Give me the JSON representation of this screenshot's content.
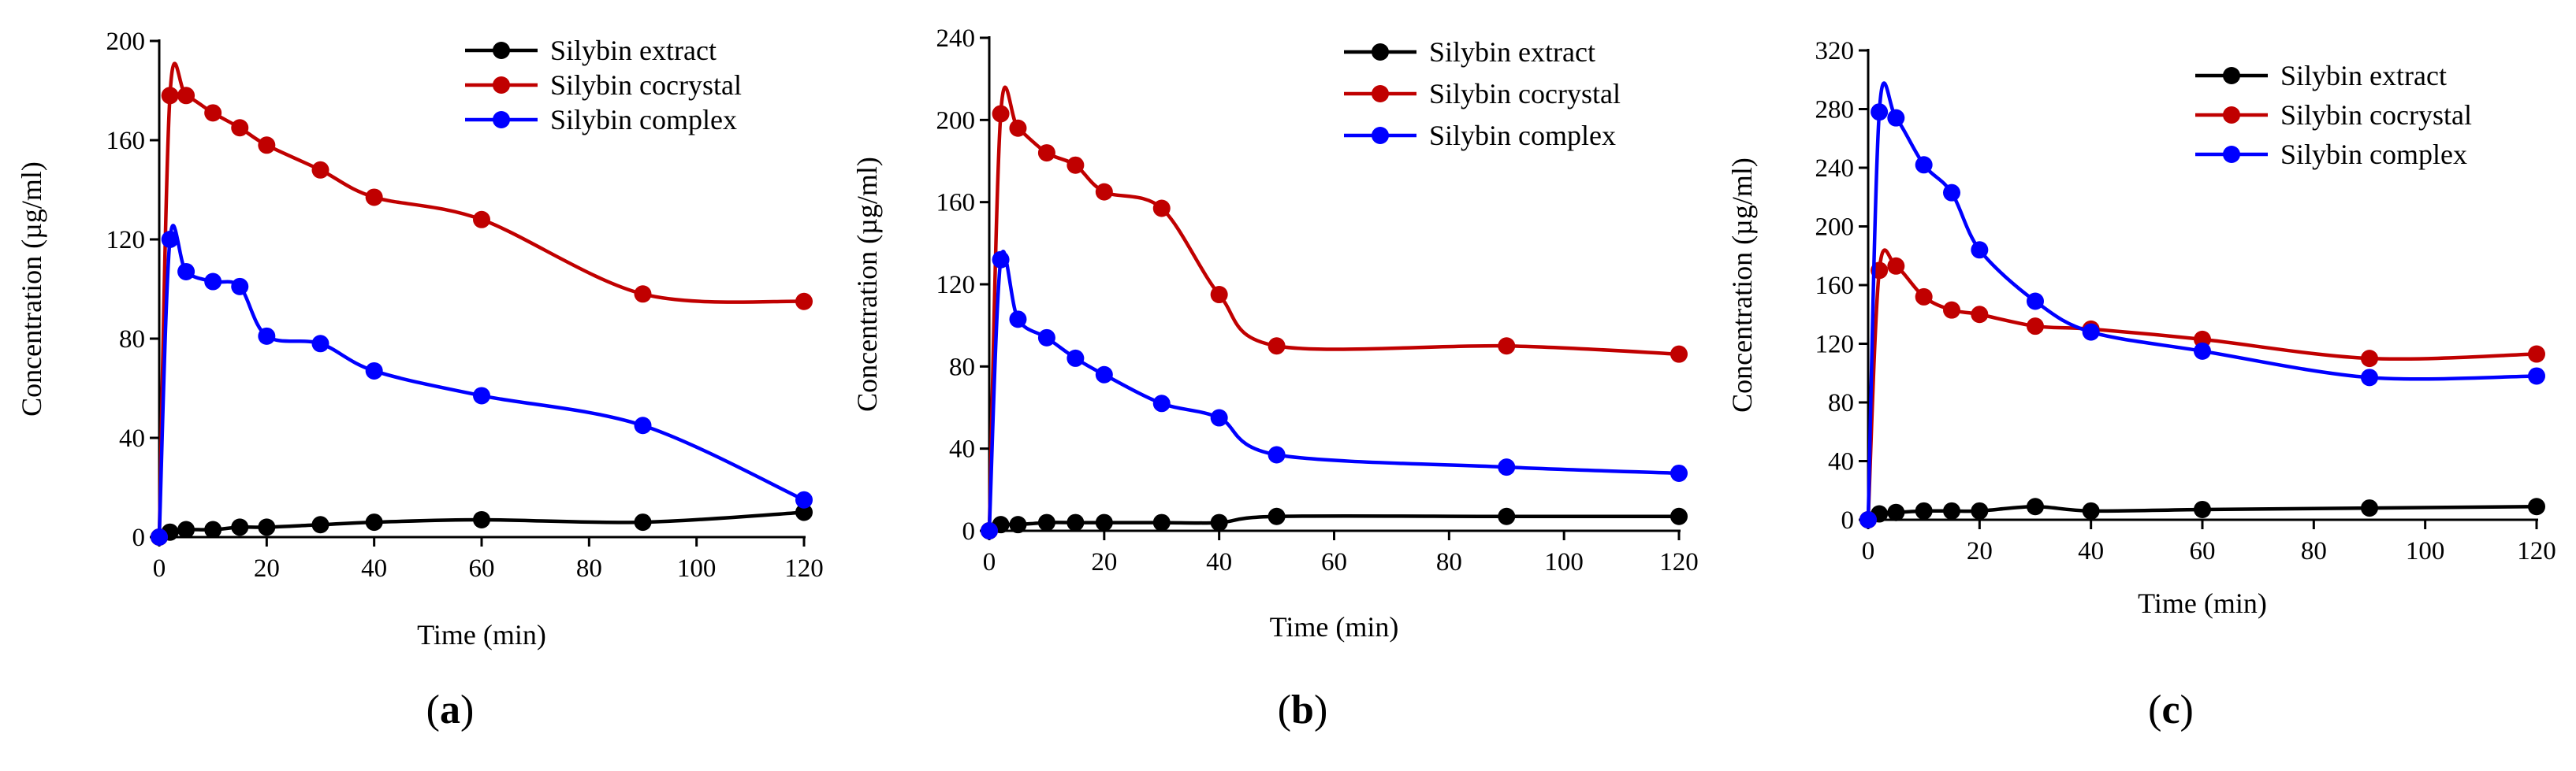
{
  "chart_data": [
    {
      "type": "line",
      "panel_label": "a",
      "xlabel": "Time (min)",
      "ylabel": "Concentration (µg/ml)",
      "xlim": [
        0,
        120
      ],
      "ylim": [
        0,
        200
      ],
      "xticks": [
        0,
        20,
        40,
        60,
        80,
        100,
        120
      ],
      "yticks": [
        0,
        40,
        80,
        120,
        160,
        200
      ],
      "legend_position": "top-right",
      "series": [
        {
          "name": "Silybin extract",
          "color": "#000000",
          "x": [
            0,
            2,
            5,
            10,
            15,
            20,
            30,
            40,
            60,
            90,
            120
          ],
          "y": [
            0,
            2,
            3,
            3,
            4,
            4,
            5,
            6,
            7,
            6,
            10
          ]
        },
        {
          "name": "Silybin cocrystal",
          "color": "#c00000",
          "x": [
            0,
            2,
            5,
            10,
            15,
            20,
            30,
            40,
            60,
            90,
            120
          ],
          "y": [
            0,
            178,
            178,
            171,
            165,
            158,
            148,
            137,
            128,
            98,
            95
          ]
        },
        {
          "name": "Silybin complex",
          "color": "#0000ff",
          "x": [
            0,
            2,
            5,
            10,
            15,
            20,
            30,
            40,
            60,
            90,
            120
          ],
          "y": [
            0,
            120,
            107,
            103,
            101,
            81,
            78,
            67,
            57,
            45,
            15
          ]
        }
      ]
    },
    {
      "type": "line",
      "panel_label": "b",
      "xlabel": "Time (min)",
      "ylabel": "Concentration (µg/ml)",
      "xlim": [
        0,
        120
      ],
      "ylim": [
        0,
        240
      ],
      "xticks": [
        0,
        20,
        40,
        60,
        80,
        100,
        120
      ],
      "yticks": [
        0,
        40,
        80,
        120,
        160,
        200,
        240
      ],
      "legend_position": "top-right",
      "series": [
        {
          "name": "Silybin extract",
          "color": "#000000",
          "x": [
            0,
            2,
            5,
            10,
            15,
            20,
            30,
            40,
            50,
            90,
            120
          ],
          "y": [
            0,
            3,
            3,
            4,
            4,
            4,
            4,
            4,
            7,
            7,
            7
          ]
        },
        {
          "name": "Silybin cocrystal",
          "color": "#c00000",
          "x": [
            0,
            2,
            5,
            10,
            15,
            20,
            30,
            40,
            50,
            90,
            120
          ],
          "y": [
            0,
            203,
            196,
            184,
            178,
            165,
            157,
            115,
            90,
            90,
            86
          ]
        },
        {
          "name": "Silybin complex",
          "color": "#0000ff",
          "x": [
            0,
            2,
            5,
            10,
            15,
            20,
            30,
            40,
            50,
            90,
            120
          ],
          "y": [
            0,
            132,
            103,
            94,
            84,
            76,
            62,
            55,
            37,
            31,
            28
          ]
        }
      ]
    },
    {
      "type": "line",
      "panel_label": "c",
      "xlabel": "Time (min)",
      "ylabel": "Concentration (µg/ml)",
      "xlim": [
        0,
        120
      ],
      "ylim": [
        0,
        320
      ],
      "xticks": [
        0,
        20,
        40,
        60,
        80,
        100,
        120
      ],
      "yticks": [
        0,
        40,
        80,
        120,
        160,
        200,
        240,
        280,
        320
      ],
      "legend_position": "top-right",
      "series": [
        {
          "name": "Silybin extract",
          "color": "#000000",
          "x": [
            0,
            2,
            5,
            10,
            15,
            20,
            30,
            40,
            60,
            90,
            120
          ],
          "y": [
            0,
            4,
            5,
            6,
            6,
            6,
            9,
            6,
            7,
            8,
            9
          ]
        },
        {
          "name": "Silybin cocrystal",
          "color": "#c00000",
          "x": [
            0,
            2,
            5,
            10,
            15,
            20,
            30,
            40,
            60,
            90,
            120
          ],
          "y": [
            0,
            170,
            173,
            152,
            143,
            140,
            132,
            130,
            123,
            110,
            113
          ]
        },
        {
          "name": "Silybin complex",
          "color": "#0000ff",
          "x": [
            0,
            2,
            5,
            10,
            15,
            20,
            30,
            40,
            60,
            90,
            120
          ],
          "y": [
            0,
            278,
            274,
            242,
            223,
            184,
            149,
            128,
            115,
            97,
            98
          ]
        }
      ]
    }
  ]
}
